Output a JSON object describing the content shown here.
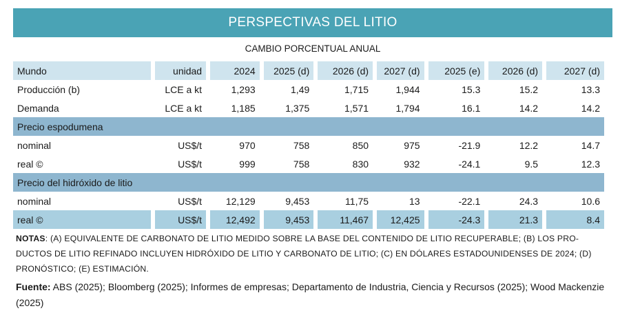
{
  "title": "PERSPECTIVAS DEL LITIO",
  "subtitle": "CAMBIO PORCENTUAL ANUAL",
  "columns": [
    "Mundo",
    "unidad",
    "2024",
    "2025 (d)",
    "2026 (d)",
    "2027 (d)",
    "2025 (e)",
    "2026 (d)",
    "2027 (d)"
  ],
  "rows": {
    "produccion": [
      "Producción (b)",
      "LCE a kt",
      "1,293",
      "1,49",
      "1,715",
      "1,944",
      "15.3",
      "15.2",
      "13.3"
    ],
    "demanda": [
      "Demanda",
      "LCE a kt",
      "1,185",
      "1,375",
      "1,571",
      "1,794",
      "16.1",
      "14.2",
      "14.2"
    ],
    "section1": "Precio espodumena",
    "espodumena_nominal": [
      "nominal",
      "US$/t",
      "970",
      "758",
      "850",
      "975",
      "-21.9",
      "12.2",
      "14.7"
    ],
    "espodumena_real": [
      "real ©",
      "US$/t",
      "999",
      "758",
      "830",
      "932",
      "-24.1",
      "9.5",
      "12.3"
    ],
    "section2": "Precio del hidróxido de litio",
    "hidroxido_nominal": [
      "nominal",
      "US$/t",
      "12,129",
      "9,453",
      "11,75",
      "13",
      "-22.1",
      "24.3",
      "10.6"
    ],
    "hidroxido_real": [
      "real ©",
      "US$/t",
      "12,492",
      "9,453",
      "11,467",
      "12,425",
      "-24.3",
      "21.3",
      "8.4"
    ]
  },
  "notes": {
    "label": "NOTAS",
    "text": ": (A) EQUIVALENTE DE CARBONATO DE LITIO MEDIDO SOBRE LA BASE DEL CONTENIDO DE LITIO RECUPERABLE; (B) LOS PRO-DUCTOS DE LITIO REFINADO INCLUYEN HIDRÓXIDO DE LITIO Y CARBONATO DE LITIO; (C) EN DÓLARES ESTADOUNIDENSES DE 2024; (D) PRONÓSTICO; (E) ESTIMACIÓN."
  },
  "source": {
    "label": "Fuente:",
    "text": " ABS (2025); Bloomberg (2025); Informes de empresas; Departamento de Industria, Ciencia y Recursos (2025); Wood Mackenzie (2025)"
  }
}
